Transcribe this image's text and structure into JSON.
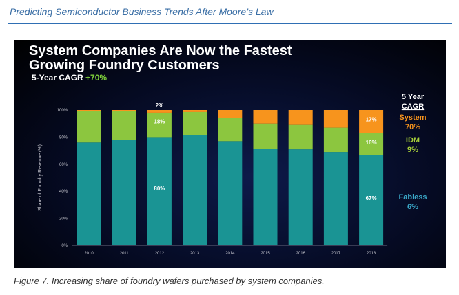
{
  "page": {
    "running_header": "Predicting Semiconductor Business Trends After Moore’s Law",
    "caption": "Figure 7. Increasing share of foundry wafers purchased by system companies."
  },
  "colors": {
    "fabless": "#1a9494",
    "idm": "#8cc63f",
    "system": "#f7941d",
    "legend_system": "#f7941d",
    "legend_idm": "#a6ce39",
    "legend_fabless": "#3aa8c8",
    "axis_text": "#c8c8d0",
    "white": "#ffffff",
    "accent_green": "#7fd13b"
  },
  "chart_data": {
    "type": "bar",
    "stacked": true,
    "title": "System Companies Are Now the Fastest Growing Foundry Customers",
    "subtitle_label": "5-Year CAGR",
    "subtitle_value": "+70%",
    "ylabel": "Share of Foundry Revenue (%)",
    "xlabel": "",
    "ylim": [
      0,
      100
    ],
    "yticks": [
      0,
      20,
      40,
      60,
      80,
      100
    ],
    "ytick_labels": [
      "0%",
      "20%",
      "40%",
      "60%",
      "80%",
      "100%"
    ],
    "categories": [
      "2010",
      "2011",
      "2012",
      "2013",
      "2014",
      "2015",
      "2016",
      "2017",
      "2018"
    ],
    "series": [
      {
        "name": "Fabless",
        "values": [
          76,
          78,
          80,
          81.5,
          77,
          71.5,
          71,
          69,
          67
        ]
      },
      {
        "name": "IDM",
        "values": [
          23,
          21,
          18,
          17,
          17,
          18.5,
          18,
          18,
          16
        ]
      },
      {
        "name": "System",
        "values": [
          1,
          1,
          2,
          1.5,
          6,
          10,
          11,
          13,
          17
        ]
      }
    ],
    "data_labels": [
      {
        "category": "2012",
        "series": "System",
        "text": "2%"
      },
      {
        "category": "2012",
        "series": "IDM",
        "text": "18%"
      },
      {
        "category": "2012",
        "series": "Fabless",
        "text": "80%"
      },
      {
        "category": "2018",
        "series": "System",
        "text": "17%"
      },
      {
        "category": "2018",
        "series": "IDM",
        "text": "16%"
      },
      {
        "category": "2018",
        "series": "Fabless",
        "text": "67%"
      }
    ],
    "legend": {
      "heading_line1": "5 Year",
      "heading_line2": "CAGR",
      "entries": [
        {
          "name": "System",
          "cagr": "70%"
        },
        {
          "name": "IDM",
          "cagr": "9%"
        },
        {
          "name": "Fabless",
          "cagr": "6%"
        }
      ],
      "placement": "right"
    }
  }
}
